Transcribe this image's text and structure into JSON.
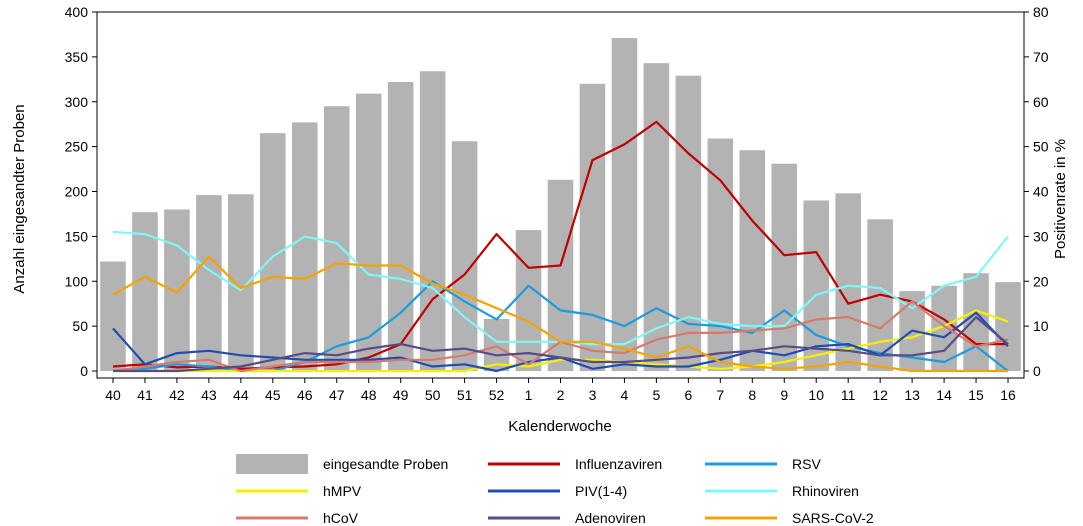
{
  "chart_data": {
    "type": "bar+line",
    "xlabel": "Kalenderwoche",
    "ylabel_left": "Anzahl eingesandter Proben",
    "ylabel_right": "Positivenrate in %",
    "ylim_left": [
      0,
      400
    ],
    "ylim_right": [
      0,
      80
    ],
    "yticks_left": [
      "0",
      "50",
      "100",
      "150",
      "200",
      "250",
      "300",
      "350",
      "400"
    ],
    "yticks_right": [
      "0",
      "10",
      "20",
      "30",
      "40",
      "50",
      "60",
      "70",
      "80"
    ],
    "categories": [
      "40",
      "41",
      "42",
      "43",
      "44",
      "45",
      "46",
      "47",
      "48",
      "49",
      "50",
      "51",
      "52",
      "1",
      "2",
      "3",
      "4",
      "5",
      "6",
      "7",
      "8",
      "9",
      "10",
      "11",
      "12",
      "13",
      "14",
      "15",
      "16"
    ],
    "bars": {
      "name": "eingesandte Proben",
      "color": "#b3b3b3",
      "values": [
        122,
        177,
        180,
        196,
        197,
        265,
        277,
        295,
        309,
        322,
        334,
        256,
        58,
        157,
        213,
        320,
        371,
        343,
        329,
        259,
        246,
        231,
        190,
        198,
        169,
        89,
        95,
        109,
        99
      ]
    },
    "series": [
      {
        "name": "Influenzaviren",
        "color": "#c00000",
        "values": [
          1,
          1.5,
          0.8,
          1,
          0.5,
          0.8,
          1,
          1.5,
          3,
          6,
          16,
          21.5,
          30.5,
          23,
          23.5,
          47,
          50.5,
          55.5,
          48.5,
          42.5,
          33.5,
          25.8,
          26.5,
          15,
          17,
          15.5,
          11.5,
          6,
          6
        ]
      },
      {
        "name": "RSV",
        "color": "#1c9ce0",
        "values": [
          0,
          0.5,
          1.5,
          1,
          0,
          0,
          2,
          5.5,
          7.5,
          13,
          20,
          15.5,
          11.5,
          19,
          13.5,
          12.5,
          10,
          14,
          10.5,
          10,
          8.5,
          13.5,
          8,
          5.5,
          4,
          3,
          2,
          5.5,
          0
        ]
      },
      {
        "name": "hMPV",
        "color": "#f5f000",
        "values": [
          0,
          0,
          0,
          0,
          0,
          0,
          0,
          0,
          0,
          0,
          0,
          0,
          1.5,
          1,
          2.5,
          2.5,
          2,
          1.5,
          1,
          0.5,
          1,
          2,
          3.5,
          5,
          6.5,
          7.5,
          10,
          13.5,
          11
        ]
      },
      {
        "name": "PIV(1-4)",
        "color": "#1f4eb0",
        "values": [
          9.5,
          1.5,
          4,
          4.5,
          3.5,
          3,
          2.5,
          2.5,
          2.5,
          3,
          1,
          1.5,
          0,
          2,
          3,
          0.5,
          1.5,
          1,
          1,
          2.5,
          4.5,
          3.5,
          5.5,
          6,
          3.5,
          9,
          7.5,
          13,
          5.5
        ]
      },
      {
        "name": "Rhinoviren",
        "color": "#7ff7f7",
        "values": [
          31,
          30.5,
          28,
          22.5,
          18,
          25.5,
          30,
          28.5,
          21.5,
          20.5,
          18.5,
          12,
          6.5,
          6.5,
          6.5,
          6,
          6,
          9.5,
          12,
          10.5,
          10,
          10,
          17,
          19,
          18.5,
          14,
          19,
          21,
          30
        ]
      },
      {
        "name": "hCoV",
        "color": "#d77a6b",
        "values": [
          0,
          1,
          2,
          2.5,
          0,
          1,
          2,
          2,
          2,
          2.5,
          2.5,
          3.5,
          5.5,
          1.5,
          6.5,
          4.5,
          4,
          7,
          8.5,
          8.5,
          9,
          9.5,
          11.5,
          12,
          9.5,
          15.5,
          10,
          5.5,
          7
        ]
      },
      {
        "name": "Adenoviren",
        "color": "#5a4a86",
        "values": [
          0,
          0,
          0,
          0.5,
          1,
          2.5,
          4,
          3.5,
          5,
          6,
          4.5,
          5,
          3.5,
          4,
          3,
          2,
          2,
          2.5,
          3,
          4,
          4.5,
          5.5,
          5,
          4.5,
          3.5,
          3.5,
          4.5,
          12,
          6
        ]
      },
      {
        "name": "SARS-CoV-2",
        "color": "#f5a300",
        "values": [
          17,
          21,
          17.5,
          25.5,
          18.5,
          21,
          20.5,
          24,
          23.5,
          23.5,
          19.5,
          17,
          14,
          11,
          6.5,
          6.5,
          5,
          3,
          5.5,
          2,
          1,
          0.5,
          1,
          2,
          1,
          0,
          0,
          0,
          0
        ]
      }
    ],
    "legend_position": "bottom"
  }
}
